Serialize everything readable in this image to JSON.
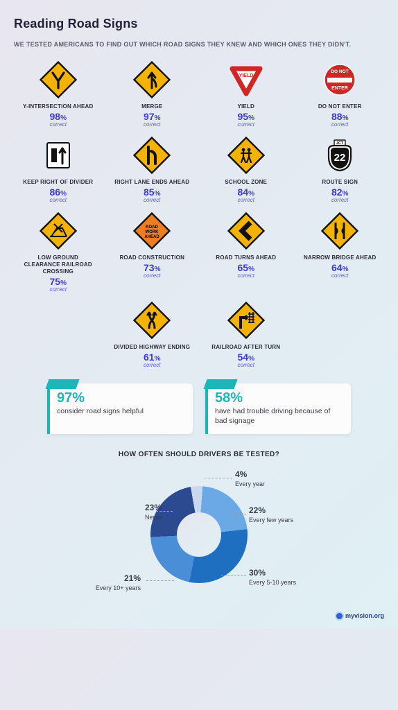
{
  "title": "Reading Road Signs",
  "subtitle": "WE TESTED AMERICANS TO FIND OUT WHICH ROAD SIGNS THEY KNEW AND WHICH ONES THEY DIDN'T.",
  "correct_label": "correct",
  "colors": {
    "percent": "#3b3bd4",
    "correct_italic": "#5b5be0",
    "accent_teal": "#1bb7b7",
    "sign_yellow": "#f4b300",
    "sign_border": "#111111",
    "yield_red": "#d22626",
    "dne_red": "#d22626",
    "route_black": "#111111",
    "construction_orange": "#ee7d22"
  },
  "signs": [
    {
      "id": "y-intersection",
      "label": "Y-INTERSECTION AHEAD",
      "pct": 98
    },
    {
      "id": "merge",
      "label": "MERGE",
      "pct": 97
    },
    {
      "id": "yield",
      "label": "YIELD",
      "pct": 95
    },
    {
      "id": "do-not-enter",
      "label": "DO NOT ENTER",
      "pct": 88
    },
    {
      "id": "keep-right",
      "label": "KEEP RIGHT OF DIVIDER",
      "pct": 86
    },
    {
      "id": "right-lane-ends",
      "label": "RIGHT LANE ENDS AHEAD",
      "pct": 85
    },
    {
      "id": "school-zone",
      "label": "SCHOOL ZONE",
      "pct": 84
    },
    {
      "id": "route-sign",
      "label": "ROUTE SIGN",
      "pct": 82
    },
    {
      "id": "railroad-clearance",
      "label": "LOW GROUND CLEARANCE RAILROAD CROSSING",
      "pct": 75
    },
    {
      "id": "road-construction",
      "label": "ROAD CONSTRUCTION",
      "pct": 73
    },
    {
      "id": "road-turns",
      "label": "ROAD TURNS AHEAD",
      "pct": 65
    },
    {
      "id": "narrow-bridge",
      "label": "NARROW BRIDGE AHEAD",
      "pct": 64
    },
    {
      "id": "divided-hwy-end",
      "label": "DIVIDED HIGHWAY ENDING",
      "pct": 61
    },
    {
      "id": "railroad-after-turn",
      "label": "RAILROAD AFTER TURN",
      "pct": 54
    }
  ],
  "stat_boxes": [
    {
      "pct": "97%",
      "desc": "consider road signs helpful"
    },
    {
      "pct": "58%",
      "desc": "have had trouble driving because of bad signage"
    }
  ],
  "donut": {
    "title": "HOW OFTEN SHOULD DRIVERS BE TESTED?",
    "segments": [
      {
        "label": "Every year",
        "pct": 4,
        "color": "#c9d8ec"
      },
      {
        "label": "Every few years",
        "pct": 22,
        "color": "#6aa9e6"
      },
      {
        "label": "Every 5-10 years",
        "pct": 30,
        "color": "#1f6fc0"
      },
      {
        "label": "Every 10+ years",
        "pct": 21,
        "color": "#4a8ed8"
      },
      {
        "label": "Never",
        "pct": 23,
        "color": "#2b4a8f"
      }
    ]
  },
  "footer": "myvision.org"
}
